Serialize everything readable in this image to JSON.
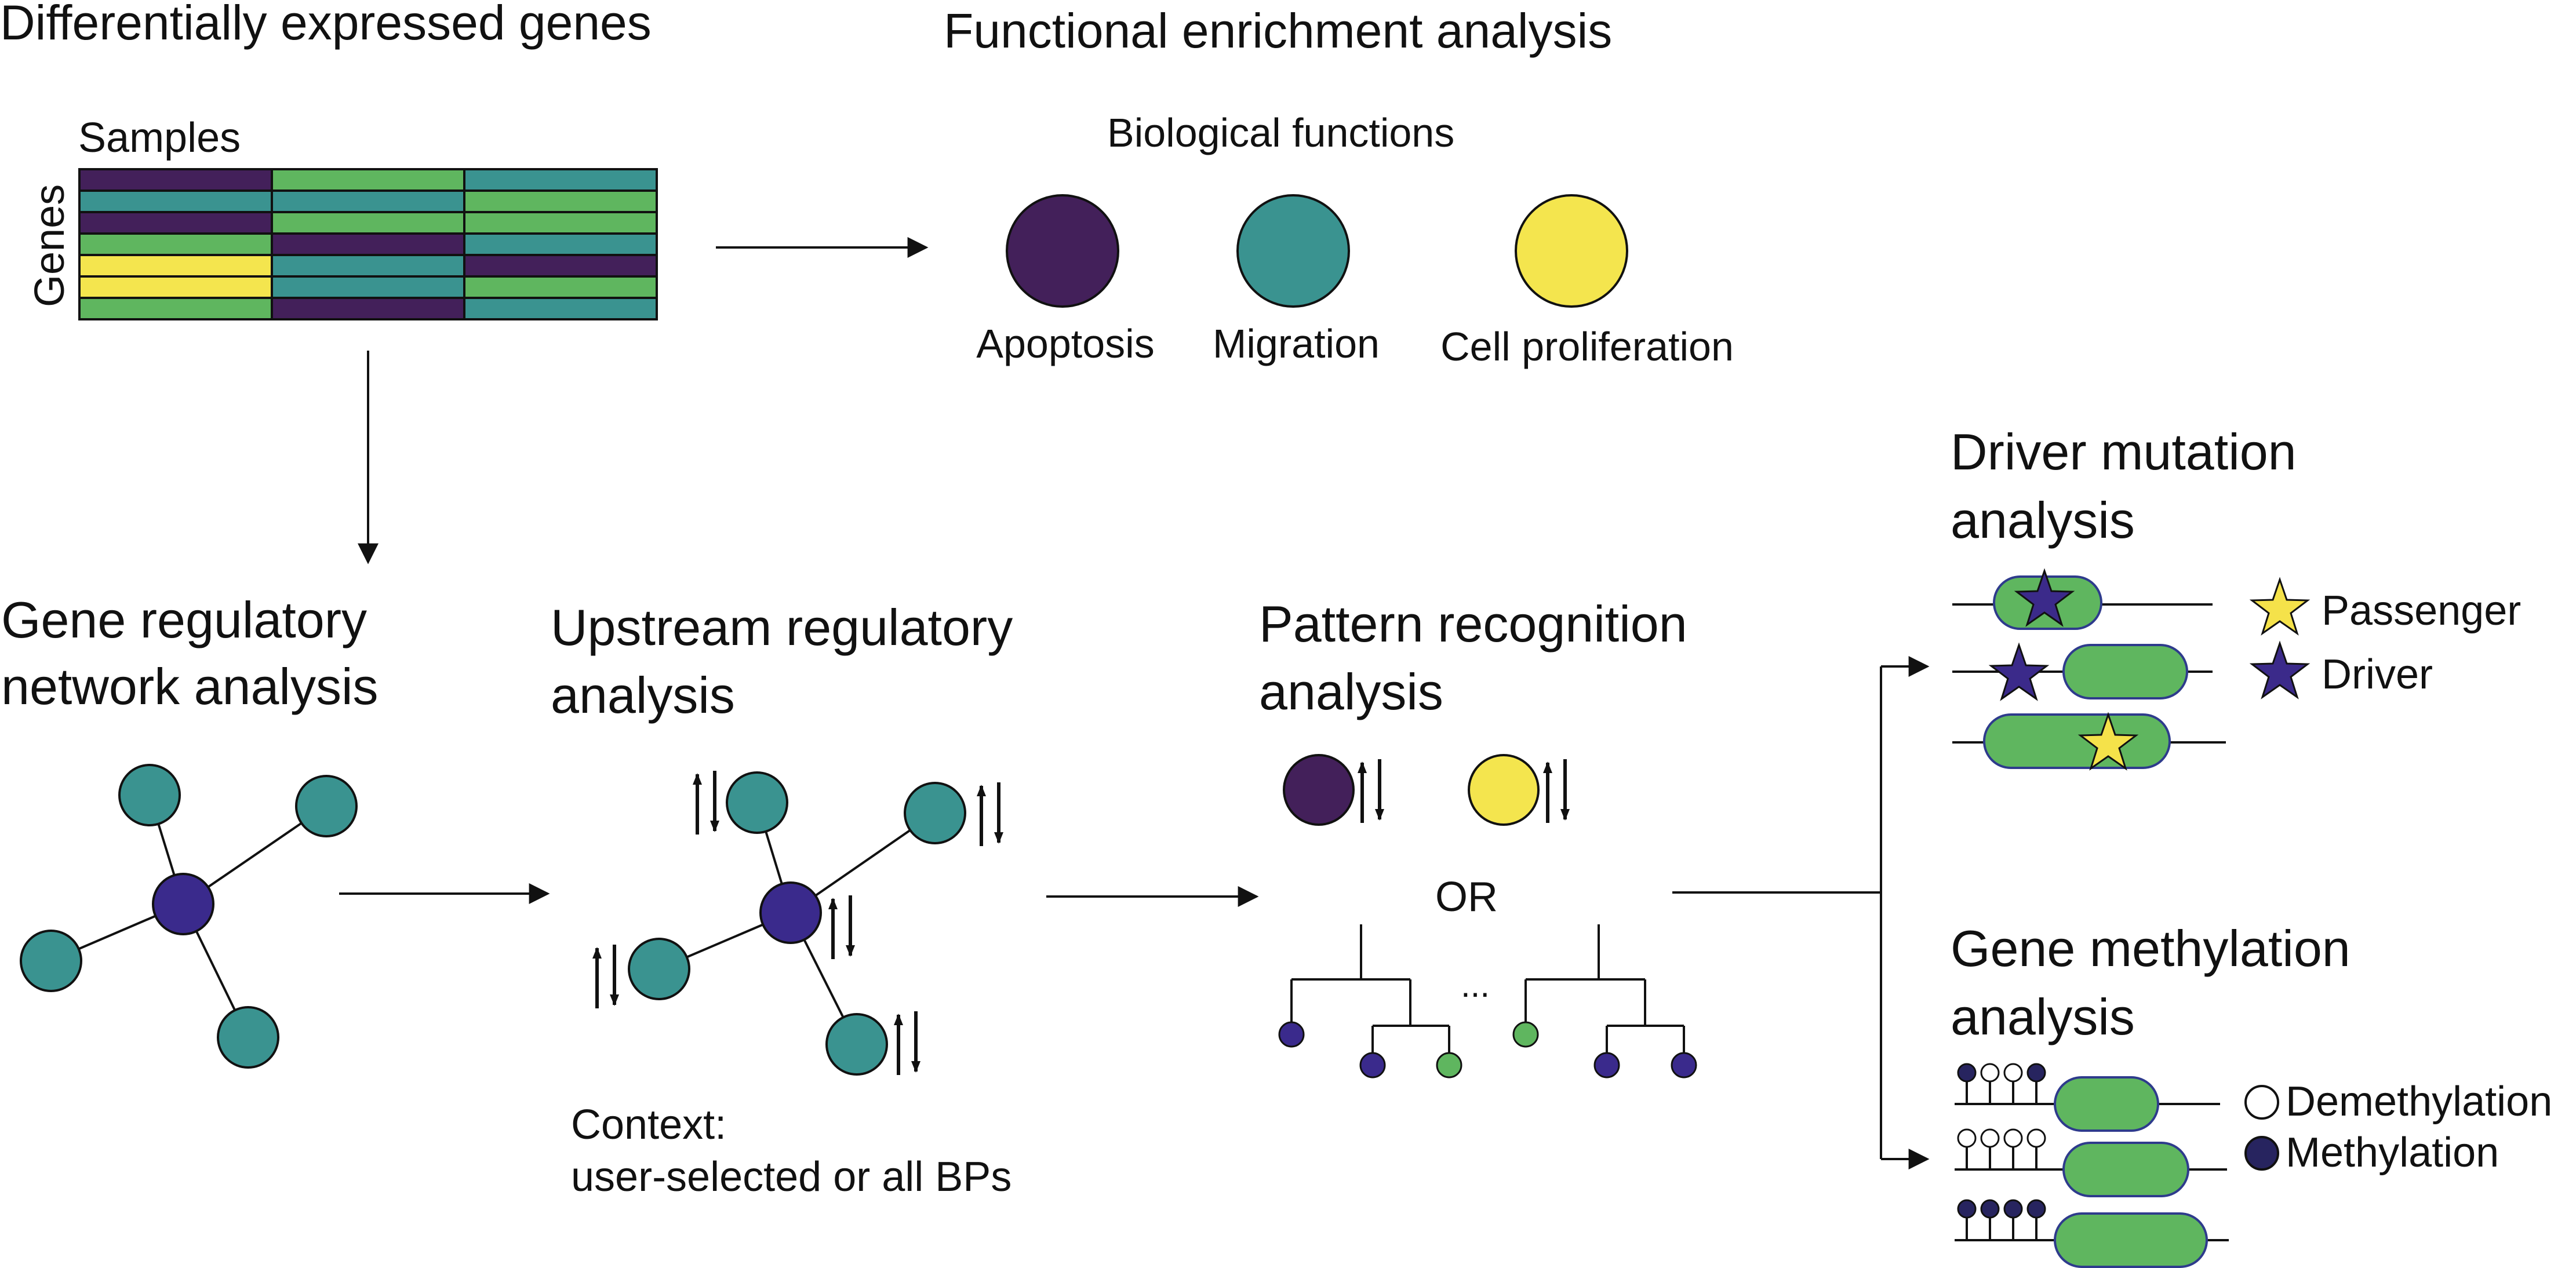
{
  "sections": {
    "deg": {
      "title": "Differentially expressed genes",
      "samples_label": "Samples",
      "genes_label": "Genes"
    },
    "functional": {
      "title": "Functional enrichment analysis",
      "subtitle": "Biological functions",
      "functions": [
        {
          "label": "Apoptosis",
          "color": "#43205a"
        },
        {
          "label": "Migration",
          "color": "#3a9390"
        },
        {
          "label": "Cell proliferation",
          "color": "#f4e54e"
        }
      ]
    },
    "grn": {
      "title_line1": "Gene regulatory",
      "title_line2": "network analysis"
    },
    "upstream": {
      "title_line1": "Upstream regulatory",
      "title_line2": "analysis",
      "context_line1": "Context:",
      "context_line2": "user-selected or all BPs"
    },
    "pattern": {
      "title_line1": "Pattern recognition",
      "title_line2": "analysis",
      "or_label": "OR",
      "ellipsis": "..."
    },
    "driver": {
      "title_line1": "Driver mutation",
      "title_line2": "analysis",
      "legend": [
        {
          "label": "Passenger",
          "color": "#f5e24a"
        },
        {
          "label": "Driver",
          "color": "#3b2a8a"
        }
      ]
    },
    "methylation": {
      "title_line1": "Gene methylation",
      "title_line2": "analysis",
      "legend": [
        {
          "label": "Demethylation"
        },
        {
          "label": "Methylation",
          "color": "#27245f"
        }
      ]
    }
  },
  "colors": {
    "purple": "#43205a",
    "teal": "#3a9390",
    "green": "#5fb65f",
    "yellow": "#f4e54e",
    "hub": "#3a2a8c"
  },
  "heatmap": {
    "rows": [
      [
        "purple",
        "green",
        "teal"
      ],
      [
        "teal",
        "teal",
        "green"
      ],
      [
        "purple",
        "green",
        "green"
      ],
      [
        "green",
        "purple",
        "teal"
      ],
      [
        "yellow",
        "teal",
        "purple"
      ],
      [
        "yellow",
        "teal",
        "green"
      ],
      [
        "green",
        "purple",
        "teal"
      ]
    ]
  }
}
